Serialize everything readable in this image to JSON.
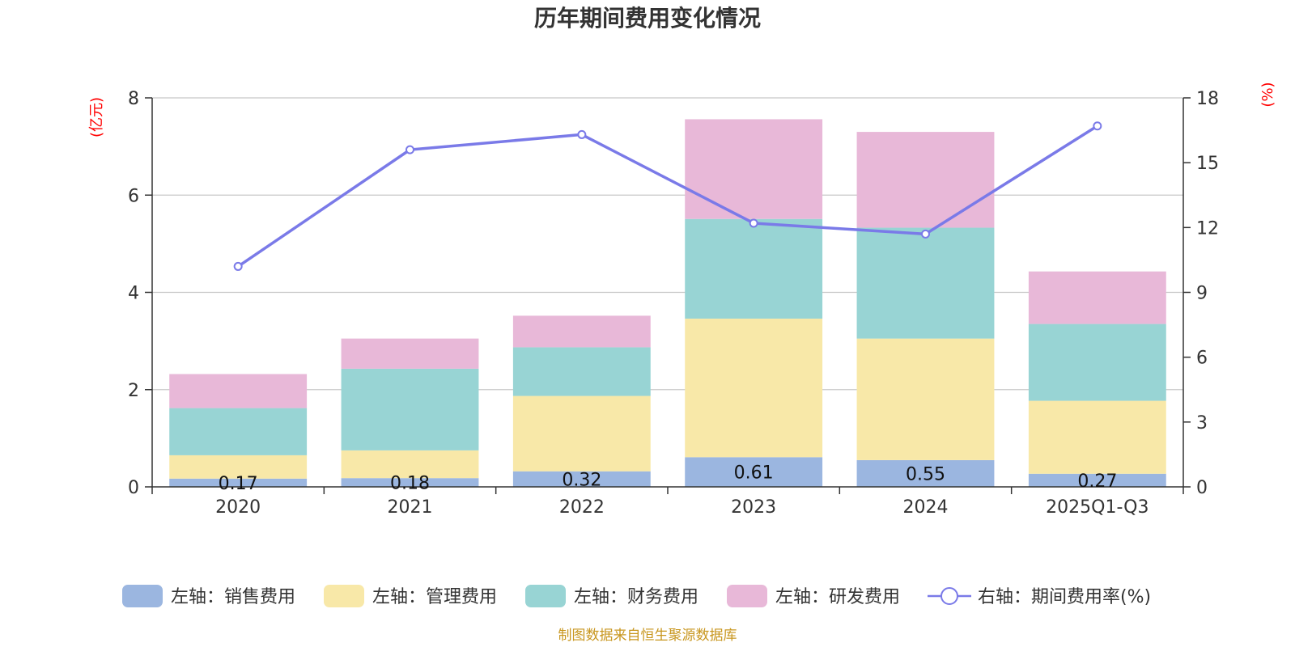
{
  "chart_data": {
    "type": "bar",
    "title": "历年期间费用变化情况",
    "left_axis_unit": "(亿元)",
    "right_axis_unit": "(%)",
    "categories": [
      "2020",
      "2021",
      "2022",
      "2023",
      "2024",
      "2025Q1-Q3"
    ],
    "ylim_left": [
      0,
      8
    ],
    "yticks_left": [
      "0",
      "2",
      "4",
      "6",
      "8"
    ],
    "ylim_right": [
      0,
      18
    ],
    "yticks_right": [
      "0",
      "3",
      "6",
      "9",
      "12",
      "15",
      "18"
    ],
    "grid": true,
    "series": [
      {
        "name": "左轴：销售费用",
        "axis": "left",
        "kind": "bar",
        "color": "#9bb6e0",
        "values": [
          0.17,
          0.18,
          0.32,
          0.61,
          0.55,
          0.27
        ],
        "labels": [
          "0.17",
          "0.18",
          "0.32",
          "0.61",
          "0.55",
          "0.27"
        ]
      },
      {
        "name": "左轴：管理费用",
        "axis": "left",
        "kind": "bar",
        "color": "#f8e8a8",
        "values": [
          0.48,
          0.57,
          1.55,
          2.85,
          2.5,
          1.5
        ]
      },
      {
        "name": "左轴：财务费用",
        "axis": "left",
        "kind": "bar",
        "color": "#98d4d4",
        "values": [
          0.97,
          1.68,
          1.0,
          2.05,
          2.28,
          1.58
        ]
      },
      {
        "name": "左轴：研发费用",
        "axis": "left",
        "kind": "bar",
        "color": "#e8b8d8",
        "values": [
          0.7,
          0.62,
          0.65,
          2.05,
          1.97,
          1.08
        ]
      },
      {
        "name": "右轴：期间费用率(%)",
        "axis": "right",
        "kind": "line",
        "color": "#7a7ae8",
        "values": [
          10.2,
          15.6,
          16.3,
          12.2,
          11.7,
          16.7
        ]
      }
    ],
    "legend_position": "bottom-center",
    "source_text": "制图数据来自恒生聚源数据库"
  }
}
